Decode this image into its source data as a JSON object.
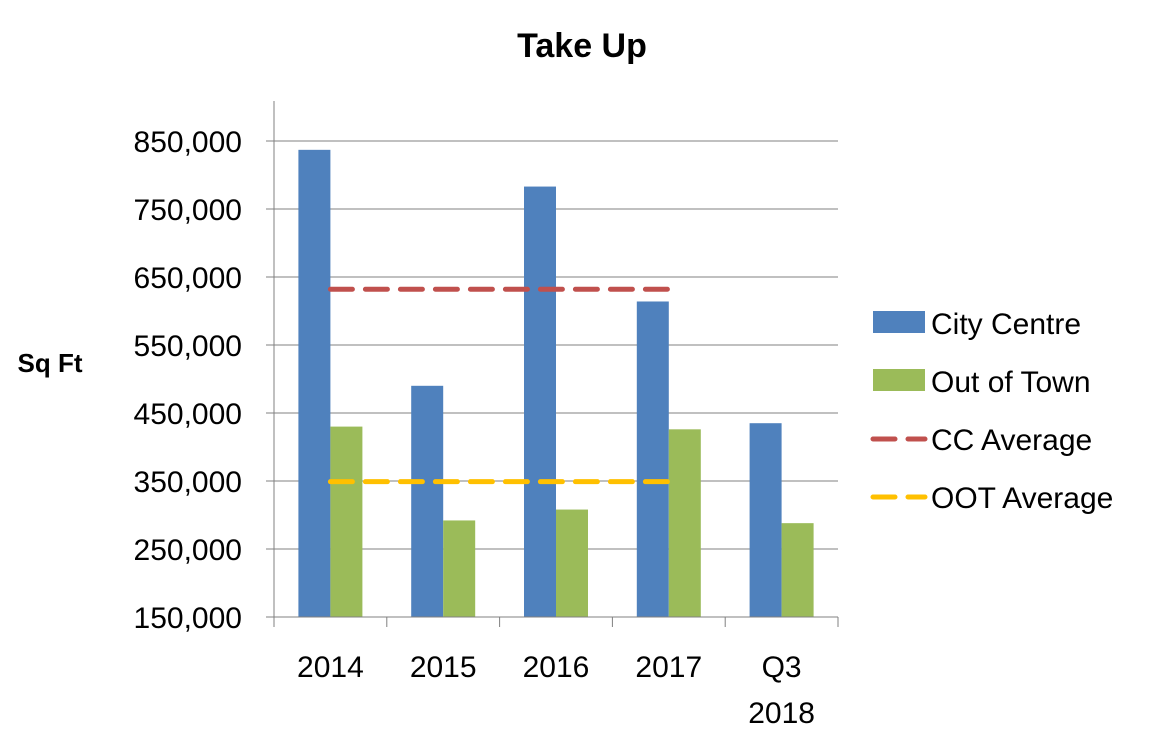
{
  "chart_data": {
    "type": "bar",
    "title": "Take Up",
    "xlabel": "",
    "ylabel": "Sq Ft",
    "ylim": [
      150000,
      850000
    ],
    "yticks": [
      "150,000",
      "250,000",
      "350,000",
      "450,000",
      "550,000",
      "650,000",
      "750,000",
      "850,000"
    ],
    "ytick_values": [
      150000,
      250000,
      350000,
      450000,
      550000,
      650000,
      750000,
      850000
    ],
    "categories": [
      {
        "line1": "2014",
        "line2": ""
      },
      {
        "line1": "2015",
        "line2": ""
      },
      {
        "line1": "2016",
        "line2": ""
      },
      {
        "line1": "2017",
        "line2": ""
      },
      {
        "line1": "Q3",
        "line2": "2018"
      }
    ],
    "grid": true,
    "legend_position": "right",
    "series": [
      {
        "name": "City Centre",
        "kind": "bar",
        "color": "#4F81BD",
        "values": [
          837000,
          490000,
          783000,
          614000,
          435000
        ]
      },
      {
        "name": "Out of Town",
        "kind": "bar",
        "color": "#9BBB59",
        "values": [
          430000,
          292000,
          308000,
          426000,
          288000
        ]
      },
      {
        "name": "CC Average",
        "kind": "dashed-line",
        "color": "#C0504D",
        "values": [
          632000,
          632000,
          632000,
          632000,
          null
        ]
      },
      {
        "name": "OOT Average",
        "kind": "dashed-line",
        "color": "#FFC000",
        "values": [
          349000,
          349000,
          349000,
          349000,
          null
        ]
      }
    ]
  }
}
